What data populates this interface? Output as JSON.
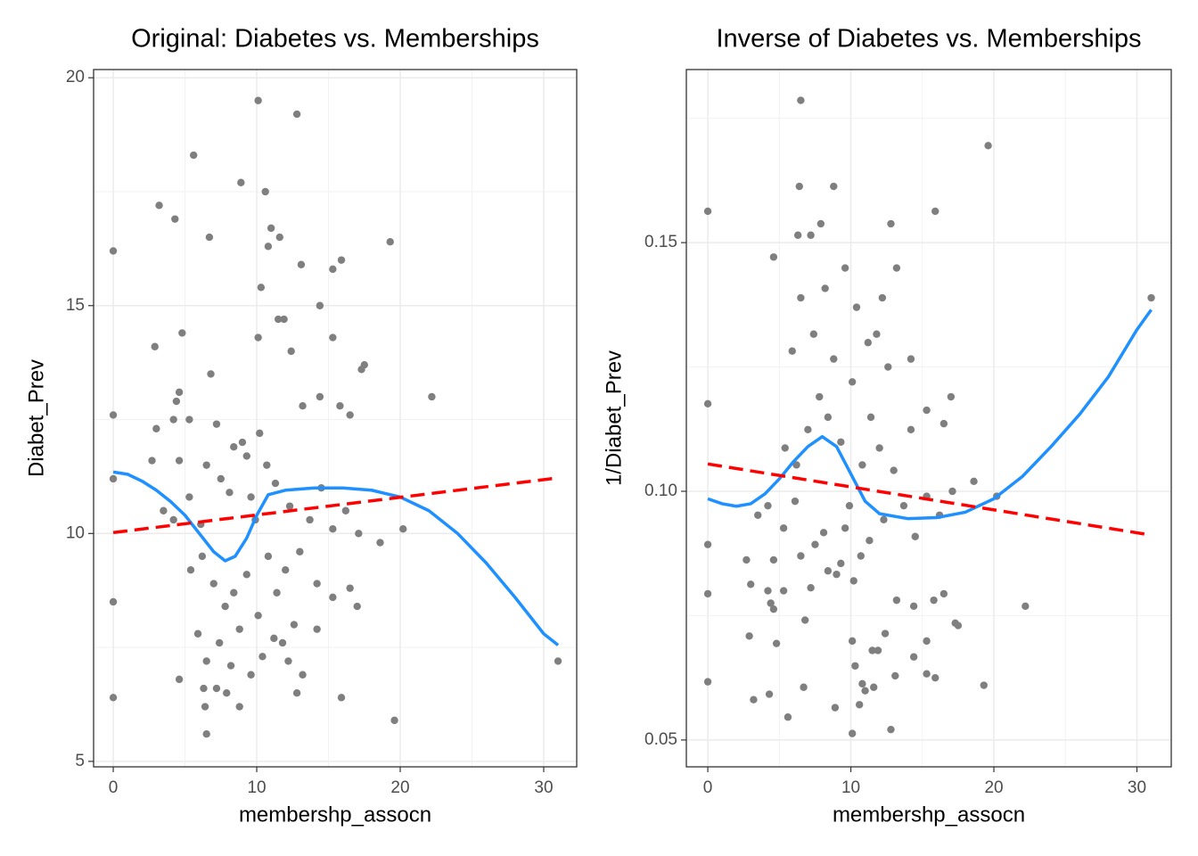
{
  "chart_data": [
    {
      "type": "scatter",
      "title": "Original: Diabetes vs. Memberships",
      "x_label": "membershp_assocn",
      "y_label": "Diabet_Prev",
      "xlim": [
        -1.37,
        32.3
      ],
      "ylim": [
        4.88,
        20.18
      ],
      "xticks": [
        0,
        10,
        20,
        30
      ],
      "yticks": [
        5,
        10,
        15,
        20
      ],
      "xminor": [
        5,
        15,
        25
      ],
      "yminor": [
        7.5,
        12.5,
        17.5
      ],
      "grid": true,
      "series": [
        {
          "mode": "markers",
          "color": "#7f7f7f",
          "x": [
            0,
            0,
            0,
            0,
            0,
            2.9,
            3.2,
            4.3,
            4.8,
            5.6,
            6.7,
            6.8,
            8.9,
            10.1,
            12.8,
            10.6,
            11.0,
            10.8,
            11.6,
            13.1,
            15.3,
            15.9,
            19.3,
            10.3,
            11.5,
            11.9,
            14.4,
            15.3,
            12.4,
            10.1,
            17.5,
            17.3,
            22.2,
            4.6,
            4.4,
            3,
            4.2,
            2.7,
            4.6,
            5.3,
            7.2,
            6.5,
            8.4,
            9.0,
            9.3,
            10.2,
            13.2,
            14.4,
            15.8,
            16.5,
            3.5,
            4.2,
            5.3,
            6.1,
            7.5,
            8.1,
            9.6,
            10.7,
            11.3,
            12.3,
            13.7,
            14.5,
            15.3,
            16.2,
            17.1,
            18.6,
            20.2,
            5.4,
            6.2,
            7.0,
            7.8,
            8.4,
            9.3,
            10.1,
            10.8,
            11.4,
            12.0,
            13.0,
            14.2,
            15.3,
            16.5,
            17.0,
            5.9,
            6.5,
            7.4,
            8.2,
            8.8,
            9.6,
            10.4,
            11.2,
            12.2,
            13.2,
            14.2,
            4.6,
            6.3,
            7.2,
            6.4,
            6.5,
            7.9,
            8.8,
            12.8,
            15.9,
            19.6,
            31,
            12.6,
            11.8,
            9.9
          ],
          "values": [
            16.2,
            12.6,
            11.2,
            8.5,
            6.4,
            14.1,
            17.2,
            16.9,
            14.4,
            18.3,
            16.5,
            13.5,
            17.7,
            19.5,
            19.2,
            17.5,
            16.7,
            16.3,
            16.5,
            15.9,
            15.8,
            16.0,
            16.4,
            15.4,
            14.7,
            14.7,
            15.0,
            14.3,
            14.0,
            14.3,
            13.7,
            13.6,
            13.0,
            13.1,
            12.9,
            12.3,
            12.5,
            11.6,
            11.6,
            12.5,
            12.4,
            11.5,
            11.9,
            12.0,
            11.7,
            12.2,
            12.8,
            13.0,
            12.8,
            12.6,
            10.5,
            10.3,
            10.8,
            10.2,
            11.2,
            10.9,
            10.8,
            11.5,
            11.1,
            10.6,
            10.3,
            11.0,
            10.1,
            10.5,
            10.0,
            9.8,
            10.1,
            9.2,
            9.5,
            8.9,
            8.4,
            8.7,
            9.1,
            8.2,
            9.5,
            8.7,
            9.2,
            9.6,
            8.9,
            8.6,
            8.8,
            8.4,
            7.8,
            7.2,
            7.6,
            7.1,
            7.9,
            6.9,
            7.3,
            7.7,
            7.2,
            6.9,
            7.9,
            6.8,
            6.6,
            6.6,
            6.2,
            5.6,
            6.5,
            6.2,
            6.5,
            6.4,
            5.9,
            7.2,
            8.0,
            7.6,
            10.3
          ]
        },
        {
          "mode": "lines",
          "color": "#1e90ff",
          "dash": "solid",
          "x": [
            0,
            1,
            2,
            3,
            4,
            5,
            6,
            7,
            7.8,
            8.5,
            9.3,
            10,
            10.8,
            12,
            14,
            16,
            18,
            20,
            22,
            24,
            26,
            28,
            30,
            31
          ],
          "values": [
            11.35,
            11.3,
            11.15,
            10.95,
            10.7,
            10.4,
            10.0,
            9.6,
            9.4,
            9.5,
            9.9,
            10.4,
            10.85,
            10.95,
            11.0,
            11.0,
            10.95,
            10.8,
            10.5,
            10.0,
            9.35,
            8.6,
            7.8,
            7.55
          ]
        },
        {
          "mode": "lines",
          "color": "#ff0000",
          "dash": "dashed",
          "x": [
            0,
            31
          ],
          "values": [
            10.02,
            11.22
          ]
        }
      ]
    },
    {
      "type": "scatter",
      "title": "Inverse of Diabetes vs. Memberships",
      "x_label": "membershp_assocn",
      "y_label": "1/Diabet_Prev",
      "xlim": [
        -1.5,
        32.4
      ],
      "ylim": [
        0.0446,
        0.1848
      ],
      "xticks": [
        0,
        10,
        20,
        30
      ],
      "yticks": [
        0.05,
        {
          "value": 0.1,
          "label": "0.10"
        },
        0.15
      ],
      "xminor": [
        5,
        15,
        25
      ],
      "yminor": [
        0.075,
        0.125,
        0.175
      ],
      "grid": true,
      "series": [
        {
          "mode": "markers",
          "color": "#7f7f7f",
          "x": [
            0,
            0,
            0,
            0,
            0,
            2.9,
            3.2,
            4.3,
            4.8,
            5.6,
            6.7,
            6.8,
            8.9,
            10.1,
            12.8,
            10.6,
            11.0,
            10.8,
            11.6,
            13.1,
            15.3,
            15.9,
            19.3,
            10.3,
            11.5,
            11.9,
            14.4,
            15.3,
            12.4,
            10.1,
            17.5,
            17.3,
            22.2,
            4.6,
            4.4,
            3,
            4.2,
            2.7,
            4.6,
            5.3,
            7.2,
            6.5,
            8.4,
            9.0,
            9.3,
            10.2,
            13.2,
            14.4,
            15.8,
            16.5,
            3.5,
            4.2,
            5.3,
            6.1,
            7.5,
            8.1,
            9.6,
            10.7,
            11.3,
            12.3,
            13.7,
            14.5,
            15.3,
            16.2,
            17.1,
            18.6,
            20.2,
            5.4,
            6.2,
            7.0,
            7.8,
            8.4,
            9.3,
            10.1,
            10.8,
            11.4,
            12.0,
            13.0,
            14.2,
            15.3,
            16.5,
            17.0,
            5.9,
            6.5,
            7.4,
            8.2,
            8.8,
            9.6,
            10.4,
            11.2,
            12.2,
            13.2,
            14.2,
            4.6,
            6.3,
            7.2,
            6.4,
            6.5,
            7.9,
            8.8,
            12.8,
            15.9,
            19.6,
            31,
            12.6,
            11.8,
            9.9
          ],
          "values": [
            0.0617,
            0.0794,
            0.0893,
            0.1176,
            0.1563,
            0.0709,
            0.0581,
            0.0592,
            0.0694,
            0.0546,
            0.0606,
            0.0741,
            0.0565,
            0.0513,
            0.0521,
            0.0571,
            0.0599,
            0.0613,
            0.0606,
            0.0629,
            0.0633,
            0.0625,
            0.061,
            0.0649,
            0.068,
            0.068,
            0.0667,
            0.0699,
            0.0714,
            0.0699,
            0.073,
            0.0735,
            0.0769,
            0.0763,
            0.0775,
            0.0813,
            0.08,
            0.0862,
            0.0862,
            0.08,
            0.0806,
            0.087,
            0.084,
            0.0833,
            0.0855,
            0.082,
            0.0781,
            0.0769,
            0.0781,
            0.0794,
            0.0952,
            0.0971,
            0.0926,
            0.098,
            0.0893,
            0.0917,
            0.0926,
            0.087,
            0.0901,
            0.0943,
            0.0971,
            0.0909,
            0.099,
            0.0952,
            0.1,
            0.102,
            0.099,
            0.1087,
            0.1053,
            0.1124,
            0.119,
            0.1149,
            0.1099,
            0.122,
            0.1053,
            0.1149,
            0.1087,
            0.1042,
            0.1124,
            0.1163,
            0.1136,
            0.119,
            0.1282,
            0.1389,
            0.1316,
            0.1408,
            0.1266,
            0.1449,
            0.137,
            0.1299,
            0.1389,
            0.1449,
            0.1266,
            0.1471,
            0.1515,
            0.1515,
            0.1613,
            0.1786,
            0.1538,
            0.1613,
            0.1538,
            0.1563,
            0.1695,
            0.1389,
            0.125,
            0.1316,
            0.0971
          ]
        },
        {
          "mode": "lines",
          "color": "#1e90ff",
          "dash": "solid",
          "x": [
            0,
            1,
            2,
            3,
            4,
            5,
            6,
            7,
            8,
            9,
            10,
            11,
            12,
            14,
            16,
            18,
            20,
            22,
            24,
            26,
            28,
            30,
            31
          ],
          "values": [
            0.0985,
            0.0975,
            0.097,
            0.0975,
            0.0995,
            0.1025,
            0.106,
            0.109,
            0.111,
            0.109,
            0.1035,
            0.098,
            0.0955,
            0.0945,
            0.0947,
            0.0958,
            0.0985,
            0.103,
            0.109,
            0.1155,
            0.123,
            0.1325,
            0.1365
          ]
        },
        {
          "mode": "lines",
          "color": "#ff0000",
          "dash": "dashed",
          "x": [
            0,
            31
          ],
          "values": [
            0.1055,
            0.0912
          ]
        }
      ]
    }
  ]
}
